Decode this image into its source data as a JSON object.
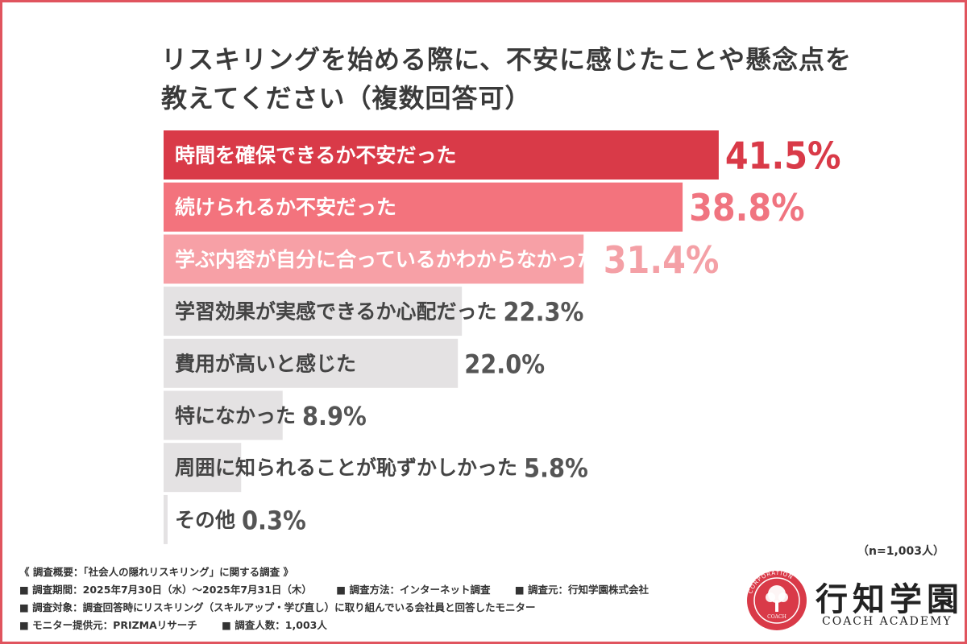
{
  "title_lines": [
    "リスキリングを始める際に、不安に感じたことや懸念点を",
    "教えてください（複数回答可）"
  ],
  "chart_data": {
    "type": "bar",
    "orientation": "horizontal",
    "title": "リスキリングを始める際に、不安に感じたことや懸念点を教えてください（複数回答可）",
    "categories": [
      "時間を確保できるか不安だった",
      "続けられるか不安だった",
      "学ぶ内容が自分に合っているかわからなかった",
      "学習効果が実感できるか心配だった",
      "費用が高いと感じた",
      "特になかった",
      "周囲に知られることが恥ずかしかった",
      "その他"
    ],
    "values": [
      41.5,
      38.8,
      31.4,
      22.3,
      22.0,
      8.9,
      5.8,
      0.3
    ],
    "value_labels": [
      "41.5%",
      "38.8%",
      "31.4%",
      "22.3%",
      "22.0%",
      "8.9%",
      "5.8%",
      "0.3%"
    ],
    "colors": [
      "#d93a48",
      "#f3737d",
      "#f7a0a6",
      "#e4e2e3",
      "#e4e2e3",
      "#e4e2e3",
      "#e4e2e3",
      "#e4e2e3"
    ],
    "label_colors": [
      "#ffffff",
      "#ffffff",
      "#ffffff",
      "#444444",
      "#444444",
      "#444444",
      "#444444",
      "#444444"
    ],
    "value_colors": [
      "#d93a48",
      "#f07480",
      "#f4a0a6",
      "#555555",
      "#555555",
      "#555555",
      "#555555",
      "#555555"
    ],
    "xlim": [
      0,
      50
    ],
    "xlabel": "",
    "ylabel": "",
    "grid": false,
    "legend": "none"
  },
  "sample_size": "（n=1,003人）",
  "footer": {
    "overview": "《 調査概要：「社会人の隠れリスキリング」に関する調査 》",
    "period": "■ 調査期間：2025年7月30日（水）～2025年7月31日（木）",
    "method": "■ 調査方法：インターネット調査",
    "source": "■ 調査元：行知学園株式会社",
    "target": "■ 調査対象：調査回答時にリスキリング（スキルアップ・学び直し）に取り組んでいる会社員と回答したモニター",
    "provider": "■ モニター提供元：PRIZMAリサーチ",
    "count": "■ 調査人数：1,003人"
  },
  "logo": {
    "name": "行知学園",
    "sub": "COACH ACADEMY",
    "seal_ring_text": "CORPORATION",
    "seal_inner_text": "COACH",
    "color": "#d93a48",
    "icon": "tree-seal-icon"
  }
}
